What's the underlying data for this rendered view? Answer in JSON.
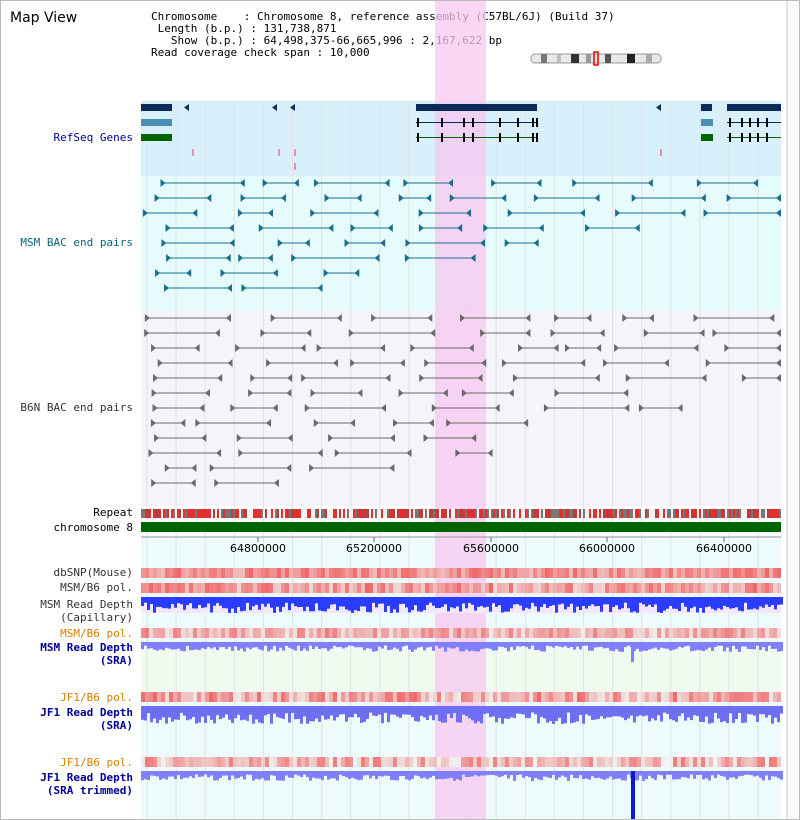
{
  "title": "Map View",
  "info": {
    "chromosome_label": "Chromosome",
    "chromosome_value": "Chromosome 8, reference assembly (C57BL/6J) (Build 37)",
    "length_label": "Length (b.p.)",
    "length_value": "131,738,871",
    "show_label": "Show (b.p.)",
    "show_value": "64,498,375-66,665,996 : 2,167,622 bp",
    "span_label": "Read coverage check span",
    "span_value": "10,000"
  },
  "tracks": {
    "refseq": "RefSeq Genes",
    "msm_bac": "MSM BAC end pairs",
    "b6n_bac": "B6N BAC end pairs",
    "repeat": "Repeat",
    "chromosome": "chromosome 8",
    "dbsnp": "dbSNP(Mouse)",
    "msm_b6_pol": "MSM/B6 pol.",
    "msm_depth_cap_1": "MSM Read Depth",
    "msm_depth_cap_2": "(Capillary)",
    "msm_b6_pol_sra": "MSM/B6 pol.",
    "msm_depth_sra_1": "MSM Read Depth",
    "msm_depth_sra_2": "(SRA)",
    "jf1_b6_pol": "JF1/B6 pol.",
    "jf1_depth_sra_1": "JF1 Read Depth",
    "jf1_depth_sra_2": "(SRA)",
    "jf1_b6_pol_2": "JF1/B6 pol.",
    "jf1_depth_trim_1": "JF1 Read Depth",
    "jf1_depth_trim_2": "(SRA trimmed)"
  },
  "axis": {
    "ticks": [
      "64800000",
      "65200000",
      "65600000",
      "66000000",
      "66400000"
    ]
  },
  "colors": {
    "refseq_bg": "#d8f0fb",
    "msm_bg": "#e6fbfb",
    "b6n_bg": "#f4f4fa",
    "highlight": "#f7c8f0",
    "teal": "#1a6f8c",
    "gray": "#6a6a6a",
    "navy": "#0b2a5a",
    "green": "#006400",
    "label_blue": "#000099",
    "label_teal": "#0a6478",
    "label_orange": "#d68000",
    "depth_blue": "#2a3cff",
    "depth_light": "#8080ff"
  }
}
